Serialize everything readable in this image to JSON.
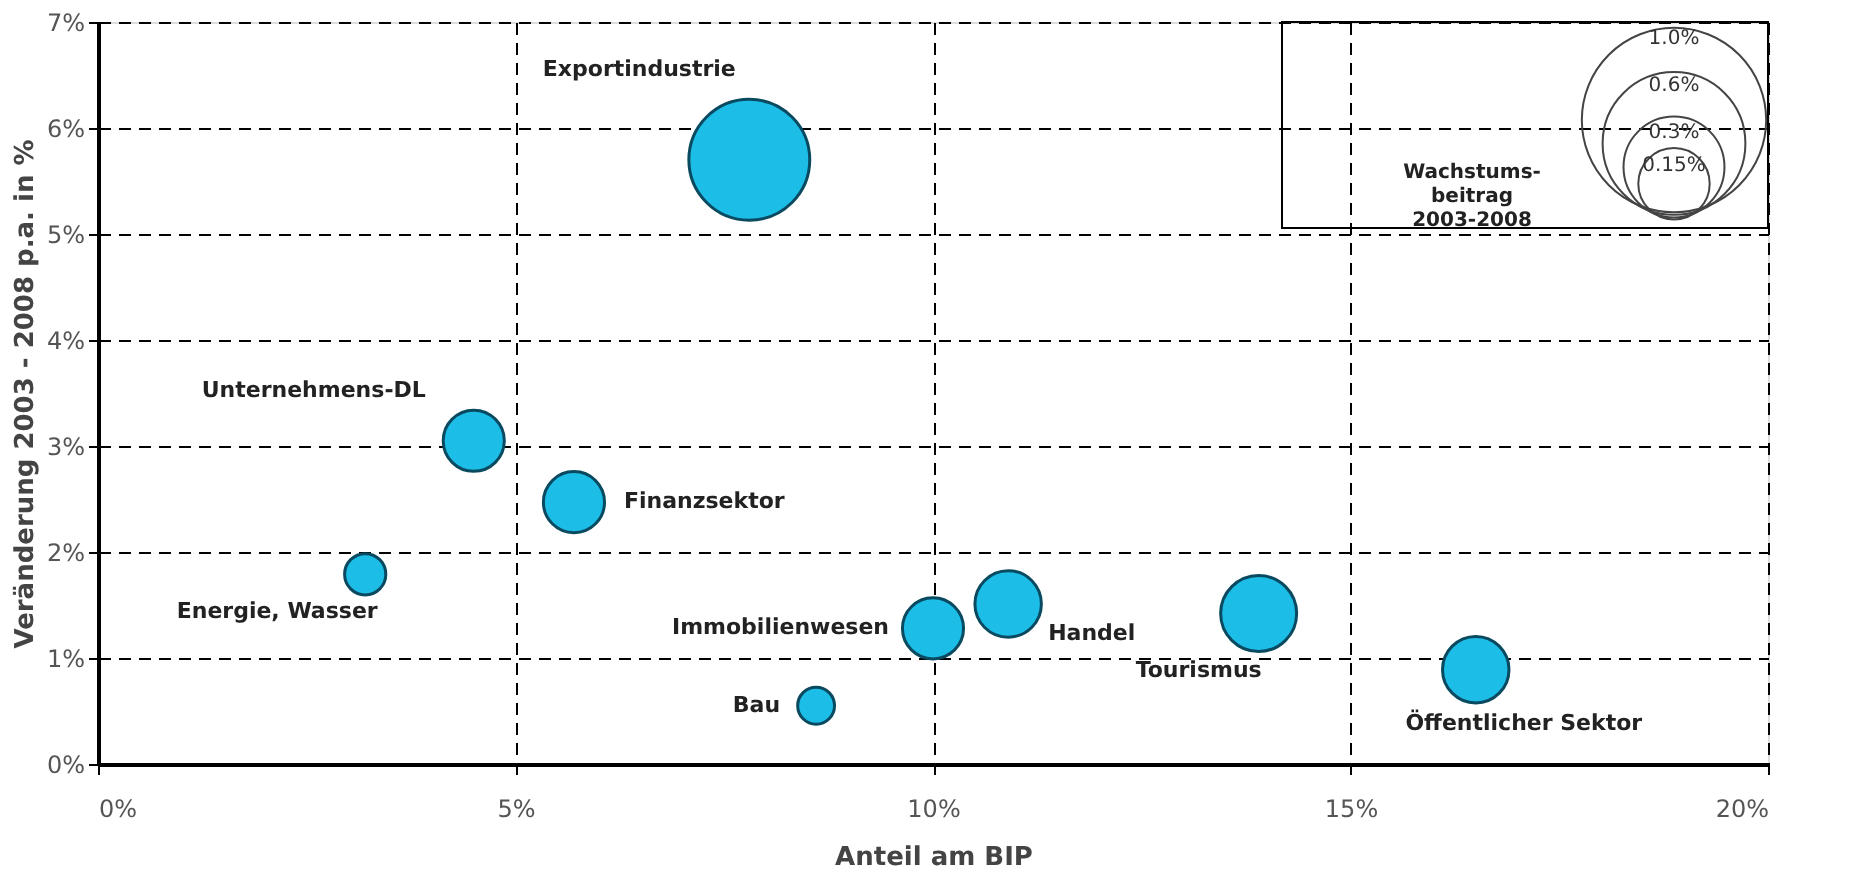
{
  "chart_data": {
    "type": "bubble",
    "series": [
      {
        "name": "Exportindustrie",
        "color": "#1cbde6",
        "x": [
          7.8
        ],
        "values": [
          5.7
        ],
        "sizes": [
          0.43
        ]
      },
      {
        "name": "Unternehmens-DL",
        "color": "#1cbde6",
        "x": [
          4.5
        ],
        "values": [
          3.05
        ],
        "sizes": [
          0.11
        ]
      },
      {
        "name": "Finanzsektor",
        "color": "#1cbde6",
        "x": [
          5.7
        ],
        "values": [
          2.47
        ],
        "sizes": [
          0.11
        ]
      },
      {
        "name": "Energie, Wasser",
        "color": "#1cbde6",
        "x": [
          3.2
        ],
        "values": [
          1.79
        ],
        "sizes": [
          0.05
        ]
      },
      {
        "name": "Immobilienwesen",
        "color": "#1cbde6",
        "x": [
          10.0
        ],
        "values": [
          1.28
        ],
        "sizes": [
          0.11
        ]
      },
      {
        "name": "Bau",
        "color": "#1cbde6",
        "x": [
          8.6
        ],
        "values": [
          0.55
        ],
        "sizes": [
          0.04
        ]
      },
      {
        "name": "Handel",
        "color": "#1cbde6",
        "x": [
          10.9
        ],
        "values": [
          1.51
        ],
        "sizes": [
          0.13
        ]
      },
      {
        "name": "Tourismus",
        "color": "#1cbde6",
        "x": [
          13.9
        ],
        "values": [
          1.42
        ],
        "sizes": [
          0.17
        ]
      },
      {
        "name": "Öffentlicher Sektor",
        "color": "#1cbde6",
        "x": [
          16.5
        ],
        "values": [
          0.89
        ],
        "sizes": [
          0.13
        ]
      }
    ],
    "size_legend": [
      {
        "value": 1.0,
        "label": "1.0%"
      },
      {
        "value": 0.6,
        "label": "0.6%"
      },
      {
        "value": 0.3,
        "label": "0.3%"
      },
      {
        "value": 0.15,
        "label": "0.15%"
      }
    ],
    "legend_title": "Wachstums-\nbeitrag\n2003-2008",
    "xlabel": "Anteil am BIP",
    "ylabel": "Veränderung 2003 - 2008 p.a. in %",
    "xlim": [
      0,
      20
    ],
    "xticks": [
      {
        "value": 0,
        "label": "0%"
      },
      {
        "value": 5,
        "label": "5%"
      },
      {
        "value": 10,
        "label": "10%"
      },
      {
        "value": 15,
        "label": "15%"
      },
      {
        "value": 20,
        "label": "20%"
      }
    ],
    "ylim": [
      0,
      7
    ],
    "yticks": [
      {
        "value": 0,
        "label": "0%"
      },
      {
        "value": 1,
        "label": "1%"
      },
      {
        "value": 2,
        "label": "2%"
      },
      {
        "value": 3,
        "label": "3%"
      },
      {
        "value": 4,
        "label": "4%"
      },
      {
        "value": 5,
        "label": "5%"
      },
      {
        "value": 6,
        "label": "6%"
      },
      {
        "value": 7,
        "label": "7%"
      }
    ],
    "grid": true
  }
}
